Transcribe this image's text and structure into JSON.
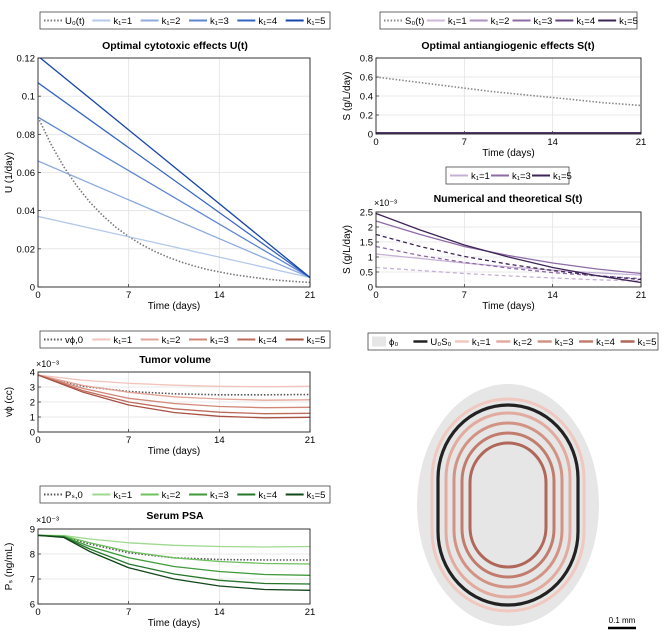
{
  "chart_data": [
    {
      "id": "U",
      "type": "line",
      "title": "Optimal cytotoxic effects U(t)",
      "xlabel": "Time (days)",
      "ylabel": "U (1/day)",
      "xlim": [
        0,
        21
      ],
      "ylim": [
        0,
        0.12
      ],
      "xticks": [
        "0",
        "7",
        "14",
        "21"
      ],
      "yticks": [
        "0",
        "0.02",
        "0.04",
        "0.06",
        "0.08",
        "0.1",
        "0.12"
      ],
      "grid": true,
      "legend_position": "top",
      "legend": [
        "U₀(t)",
        "k₁=1",
        "k₁=2",
        "k₁=3",
        "k₁=4",
        "k₁=5"
      ],
      "series": [
        {
          "name": "U₀(t)",
          "x": [
            0,
            1,
            2,
            3,
            4,
            5,
            6,
            7,
            8,
            9,
            10,
            11,
            12,
            13,
            14,
            15,
            16,
            17,
            18,
            19,
            20,
            21
          ],
          "values": [
            0.089,
            0.0748,
            0.0629,
            0.0529,
            0.0445,
            0.0374,
            0.0314,
            0.0264,
            0.0222,
            0.0187,
            0.0157,
            0.0132,
            0.0111,
            0.0093,
            0.0079,
            0.0066,
            0.0056,
            0.0047,
            0.0039,
            0.0033,
            0.0028,
            0.0024
          ],
          "color": "#777777",
          "style": "dotted"
        },
        {
          "name": "k₁=1",
          "x": [
            0,
            21
          ],
          "values": [
            0.037,
            0.005
          ],
          "color": "#b3c8ea",
          "style": "solid"
        },
        {
          "name": "k₁=2",
          "x": [
            0,
            21
          ],
          "values": [
            0.066,
            0.005
          ],
          "color": "#8eabe0",
          "style": "solid"
        },
        {
          "name": "k₁=3",
          "x": [
            0,
            21
          ],
          "values": [
            0.089,
            0.005
          ],
          "color": "#5d86d2",
          "style": "solid"
        },
        {
          "name": "k₁=4",
          "x": [
            0,
            21
          ],
          "values": [
            0.107,
            0.005
          ],
          "color": "#3464c2",
          "style": "solid"
        },
        {
          "name": "k₁=5",
          "x": [
            0,
            21
          ],
          "values": [
            0.121,
            0.005
          ],
          "color": "#1545a8",
          "style": "solid"
        }
      ]
    },
    {
      "id": "S",
      "type": "line",
      "title": "Optimal antiangiogenic effects S(t)",
      "xlabel": "Time (days)",
      "ylabel": "S (g/L/day)",
      "xlim": [
        0,
        21
      ],
      "ylim": [
        0,
        0.8
      ],
      "xticks": [
        "0",
        "7",
        "14",
        "21"
      ],
      "yticks": [
        "0",
        "0.2",
        "0.4",
        "0.6",
        "0.8"
      ],
      "grid": true,
      "legend_position": "top",
      "legend": [
        "S₀(t)",
        "k₁=1",
        "k₁=2",
        "k₁=3",
        "k₁=4",
        "k₁=5"
      ],
      "series": [
        {
          "name": "S₀(t)",
          "x": [
            0,
            3,
            6,
            9,
            12,
            15,
            18,
            21
          ],
          "values": [
            0.6,
            0.55,
            0.5,
            0.45,
            0.41,
            0.37,
            0.33,
            0.3
          ],
          "color": "#888888",
          "style": "dotted"
        },
        {
          "name": "k₁=1",
          "x": [
            0,
            21
          ],
          "values": [
            0.012,
            0.012
          ],
          "color": "#cdb8d8",
          "style": "solid"
        },
        {
          "name": "k₁=2",
          "x": [
            0,
            21
          ],
          "values": [
            0.012,
            0.012
          ],
          "color": "#ad92c0",
          "style": "solid"
        },
        {
          "name": "k₁=3",
          "x": [
            0,
            21
          ],
          "values": [
            0.012,
            0.012
          ],
          "color": "#8e6ba6",
          "style": "solid"
        },
        {
          "name": "k₁=4",
          "x": [
            0,
            21
          ],
          "values": [
            0.012,
            0.012
          ],
          "color": "#65447f",
          "style": "solid"
        },
        {
          "name": "k₁=5",
          "x": [
            0,
            21
          ],
          "values": [
            0.012,
            0.012
          ],
          "color": "#3e2457",
          "style": "solid"
        }
      ]
    },
    {
      "id": "Snum",
      "type": "line",
      "title": "Numerical and theoretical S(t)",
      "xlabel": "Time (days)",
      "ylabel": "S (g/L/day)",
      "exponent": "×10⁻³",
      "xlim": [
        0,
        21
      ],
      "ylim": [
        0,
        2.5
      ],
      "xticks": [
        "0",
        "7",
        "14",
        "21"
      ],
      "yticks": [
        "0",
        "0.5",
        "1",
        "1.5",
        "2",
        "2.5"
      ],
      "grid": true,
      "legend_position": "top",
      "legend": [
        "k₁=1",
        "k₁=3",
        "k₁=5"
      ],
      "series": [
        {
          "name": "k₁=1",
          "x": [
            0,
            3.5,
            7,
            10.5,
            14,
            17.5,
            21
          ],
          "values": [
            1.1,
            0.95,
            0.8,
            0.67,
            0.56,
            0.47,
            0.4
          ],
          "color": "#c7b0d6",
          "style": "solid"
        },
        {
          "name": "k₁=1 (theoretical)",
          "x": [
            0,
            3.5,
            7,
            10.5,
            14,
            17.5,
            21
          ],
          "values": [
            0.65,
            0.55,
            0.45,
            0.37,
            0.3,
            0.24,
            0.2
          ],
          "color": "#c7b0d6",
          "style": "dashed"
        },
        {
          "name": "k₁=3",
          "x": [
            0,
            3.5,
            7,
            10.5,
            14,
            17.5,
            21
          ],
          "values": [
            2.2,
            1.75,
            1.35,
            1.05,
            0.8,
            0.6,
            0.45
          ],
          "color": "#8e6ba6",
          "style": "solid"
        },
        {
          "name": "k₁=3 (theoretical)",
          "x": [
            0,
            3.5,
            7,
            10.5,
            14,
            17.5,
            21
          ],
          "values": [
            1.35,
            1.05,
            0.82,
            0.63,
            0.48,
            0.37,
            0.28
          ],
          "color": "#8e6ba6",
          "style": "dashed"
        },
        {
          "name": "k₁=5",
          "x": [
            0,
            3.5,
            7,
            10.5,
            14,
            17.5,
            21
          ],
          "values": [
            2.45,
            1.9,
            1.4,
            1.0,
            0.65,
            0.38,
            0.15
          ],
          "color": "#3e2457",
          "style": "solid"
        },
        {
          "name": "k₁=5 (theoretical)",
          "x": [
            0,
            3.5,
            7,
            10.5,
            14,
            17.5,
            21
          ],
          "values": [
            1.75,
            1.35,
            1.02,
            0.76,
            0.55,
            0.38,
            0.25
          ],
          "color": "#3e2457",
          "style": "dashed"
        }
      ]
    },
    {
      "id": "V",
      "type": "line",
      "title": "Tumor volume",
      "xlabel": "Time (days)",
      "ylabel": "vϕ (cc)",
      "exponent": "×10⁻³",
      "xlim": [
        0,
        21
      ],
      "ylim": [
        0,
        4
      ],
      "xticks": [
        "0",
        "7",
        "14",
        "21"
      ],
      "yticks": [
        "0",
        "1",
        "2",
        "3",
        "4"
      ],
      "grid": true,
      "legend_position": "top",
      "legend": [
        "vϕ,0",
        "k₁=1",
        "k₁=2",
        "k₁=3",
        "k₁=4",
        "k₁=5"
      ],
      "series": [
        {
          "name": "vϕ,0",
          "x": [
            0,
            3.5,
            7,
            10.5,
            14,
            17.5,
            21
          ],
          "values": [
            3.8,
            3.05,
            2.7,
            2.55,
            2.48,
            2.48,
            2.5
          ],
          "color": "#555555",
          "style": "dotted"
        },
        {
          "name": "k₁=1",
          "x": [
            0,
            3.5,
            7,
            10.5,
            14,
            17.5,
            21
          ],
          "values": [
            3.8,
            3.45,
            3.25,
            3.12,
            3.05,
            3.02,
            3.05
          ],
          "color": "#f2c4bc",
          "style": "solid"
        },
        {
          "name": "k₁=2",
          "x": [
            0,
            3.5,
            7,
            10.5,
            14,
            17.5,
            21
          ],
          "values": [
            3.8,
            3.1,
            2.65,
            2.35,
            2.2,
            2.12,
            2.15
          ],
          "color": "#e3a598",
          "style": "solid"
        },
        {
          "name": "k₁=3",
          "x": [
            0,
            3.5,
            7,
            10.5,
            14,
            17.5,
            21
          ],
          "values": [
            3.8,
            2.9,
            2.25,
            1.9,
            1.7,
            1.62,
            1.65
          ],
          "color": "#d18878",
          "style": "solid"
        },
        {
          "name": "k₁=4",
          "x": [
            0,
            3.5,
            7,
            10.5,
            14,
            17.5,
            21
          ],
          "values": [
            3.8,
            2.75,
            2.0,
            1.55,
            1.32,
            1.22,
            1.25
          ],
          "color": "#bd6b5d",
          "style": "solid"
        },
        {
          "name": "k₁=5",
          "x": [
            0,
            3.5,
            7,
            10.5,
            14,
            17.5,
            21
          ],
          "values": [
            3.8,
            2.65,
            1.8,
            1.3,
            1.05,
            0.95,
            0.98
          ],
          "color": "#a95244",
          "style": "solid"
        }
      ]
    },
    {
      "id": "P",
      "type": "line",
      "title": "Serum PSA",
      "xlabel": "Time (days)",
      "ylabel": "Pₛ (ng/mL)",
      "exponent": "×10⁻³",
      "xlim": [
        0,
        21
      ],
      "ylim": [
        6,
        9
      ],
      "xticks": [
        "0",
        "7",
        "14",
        "21"
      ],
      "yticks": [
        "6",
        "7",
        "8",
        "9"
      ],
      "grid": true,
      "legend_position": "top",
      "legend": [
        "Pₛ,0",
        "k₁=1",
        "k₁=2",
        "k₁=3",
        "k₁=4",
        "k₁=5"
      ],
      "series": [
        {
          "name": "Pₛ,0",
          "x": [
            0,
            2,
            4,
            7,
            10.5,
            14,
            17.5,
            21
          ],
          "values": [
            8.75,
            8.7,
            8.4,
            8.05,
            7.85,
            7.78,
            7.76,
            7.76
          ],
          "color": "#555555",
          "style": "dotted"
        },
        {
          "name": "k₁=1",
          "x": [
            0,
            2,
            4,
            7,
            10.5,
            14,
            17.5,
            21
          ],
          "values": [
            8.75,
            8.74,
            8.6,
            8.45,
            8.35,
            8.3,
            8.28,
            8.3
          ],
          "color": "#9fd88f",
          "style": "solid"
        },
        {
          "name": "k₁=2",
          "x": [
            0,
            2,
            4,
            7,
            10.5,
            14,
            17.5,
            21
          ],
          "values": [
            8.75,
            8.72,
            8.45,
            8.1,
            7.85,
            7.7,
            7.62,
            7.6
          ],
          "color": "#6fc15f",
          "style": "solid"
        },
        {
          "name": "k₁=3",
          "x": [
            0,
            2,
            4,
            7,
            10.5,
            14,
            17.5,
            21
          ],
          "values": [
            8.75,
            8.7,
            8.3,
            7.85,
            7.5,
            7.3,
            7.18,
            7.15
          ],
          "color": "#3f9a3a",
          "style": "solid"
        },
        {
          "name": "k₁=4",
          "x": [
            0,
            2,
            4,
            7,
            10.5,
            14,
            17.5,
            21
          ],
          "values": [
            8.75,
            8.68,
            8.2,
            7.6,
            7.2,
            6.95,
            6.82,
            6.8
          ],
          "color": "#26752a",
          "style": "solid"
        },
        {
          "name": "k₁=5",
          "x": [
            0,
            2,
            4,
            7,
            10.5,
            14,
            17.5,
            21
          ],
          "values": [
            8.75,
            8.66,
            8.1,
            7.45,
            7.0,
            6.72,
            6.58,
            6.55
          ],
          "color": "#12471a",
          "style": "solid"
        }
      ]
    },
    {
      "id": "shape",
      "type": "diagram",
      "legend": [
        "ϕ₀",
        "U₀S₀",
        "k₁=1",
        "k₁=2",
        "k₁=3",
        "k₁=4",
        "k₁=5"
      ],
      "colors": [
        "#e6e6e6",
        "#222222",
        "#f0c8bf",
        "#e2ab9f",
        "#d39384",
        "#c27c6d",
        "#b06658"
      ],
      "scale_bar": "0.1 mm"
    }
  ]
}
